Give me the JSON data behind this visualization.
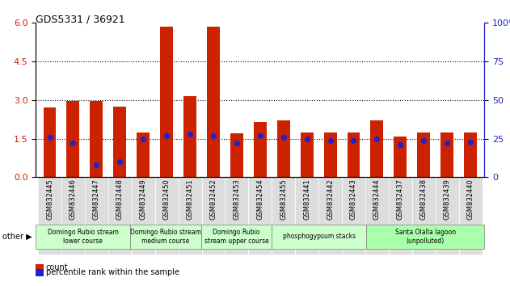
{
  "title": "GDS5331 / 36921",
  "samples": [
    "GSM832445",
    "GSM832446",
    "GSM832447",
    "GSM832448",
    "GSM832449",
    "GSM832450",
    "GSM832451",
    "GSM832452",
    "GSM832453",
    "GSM832454",
    "GSM832455",
    "GSM832441",
    "GSM832442",
    "GSM832443",
    "GSM832444",
    "GSM832437",
    "GSM832438",
    "GSM832439",
    "GSM832440"
  ],
  "counts": [
    2.7,
    2.95,
    2.95,
    2.75,
    1.75,
    5.85,
    3.15,
    5.85,
    1.7,
    2.15,
    2.2,
    1.75,
    1.75,
    1.75,
    2.2,
    1.6,
    1.75,
    1.75,
    1.75
  ],
  "percentile_pct": [
    26,
    22,
    8,
    10,
    25,
    27,
    28,
    27,
    22,
    27,
    26,
    25,
    24,
    24,
    25,
    21,
    24,
    22,
    23
  ],
  "groups": [
    {
      "label": "Domingo Rubio stream\nlower course",
      "start": 0,
      "end": 4,
      "color": "#ccffcc"
    },
    {
      "label": "Domingo Rubio stream\nmedium course",
      "start": 4,
      "end": 7,
      "color": "#ccffcc"
    },
    {
      "label": "Domingo Rubio\nstream upper course",
      "start": 7,
      "end": 10,
      "color": "#ccffcc"
    },
    {
      "label": "phosphogypsum stacks",
      "start": 10,
      "end": 14,
      "color": "#ccffcc"
    },
    {
      "label": "Santa Olalla lagoon\n(unpolluted)",
      "start": 14,
      "end": 19,
      "color": "#aaffaa"
    }
  ],
  "bar_color": "#cc2200",
  "dot_color": "#2222cc",
  "ylim_left": [
    0,
    6
  ],
  "ylim_right": [
    0,
    100
  ],
  "yticks_left": [
    0,
    1.5,
    3.0,
    4.5,
    6.0
  ],
  "yticks_right": [
    0,
    25,
    50,
    75,
    100
  ],
  "grid_values": [
    1.5,
    3.0,
    4.5
  ],
  "bar_width": 0.55,
  "dot_size": 18,
  "legend_count": "count",
  "legend_pct": "percentile rank within the sample",
  "other_label": "other"
}
